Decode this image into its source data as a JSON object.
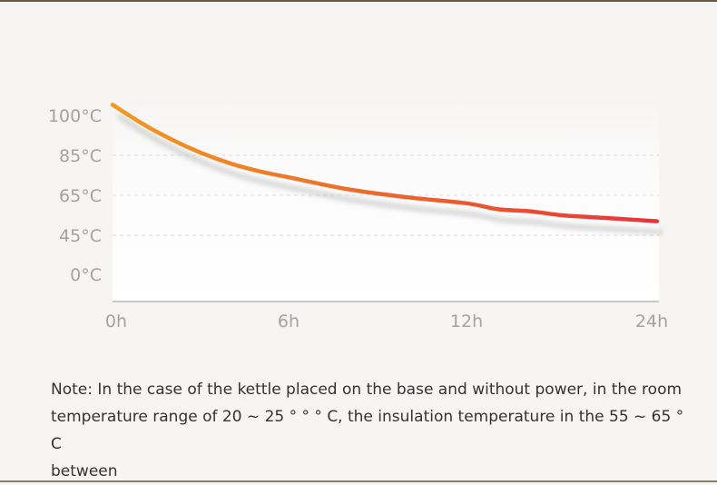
{
  "chart_data": {
    "type": "line",
    "title": "",
    "xlabel": "",
    "ylabel": "",
    "x_tick_labels": [
      "0h",
      "6h",
      "12h",
      "24h"
    ],
    "y_tick_labels": [
      "100°C",
      "85°C",
      "65°C",
      "45°C",
      "0°C"
    ],
    "series": [
      {
        "points": [
          [
            0,
            104
          ],
          [
            1,
            97
          ],
          [
            2,
            91
          ],
          [
            3,
            86
          ],
          [
            4,
            81
          ],
          [
            5,
            77
          ],
          [
            6,
            74
          ],
          [
            8,
            68
          ],
          [
            10,
            64
          ],
          [
            12,
            61
          ],
          [
            14,
            58
          ],
          [
            16,
            57
          ],
          [
            18,
            55
          ],
          [
            20,
            54
          ],
          [
            22,
            53
          ],
          [
            24,
            52
          ]
        ]
      }
    ],
    "grid": "dashed horizontal",
    "colors": {
      "line_start": "#f29a1f",
      "line_end": "#e8333a",
      "grid": "#dcdcdc",
      "axis": "#c8c8c8"
    }
  },
  "note": {
    "line1": "Note: In the case of the kettle placed on the base and without power, in the room",
    "line2": "temperature range of 20 ~ 25 ° ° ° C, the insulation temperature in the 55 ~ 65  ° C",
    "line3": "between"
  }
}
